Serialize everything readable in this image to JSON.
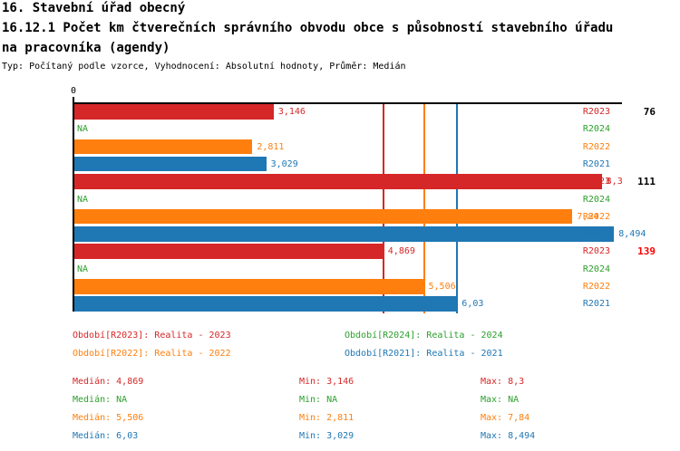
{
  "title": {
    "line1": "16. Stavební úřad obecný",
    "line2": "16.12.1 Počet km čtverečních správního obvodu obce s působností stavebního úřadu",
    "line3": "na pracovníka (agendy)",
    "subtitle": "Typ: Počítaný podle vzorce, Vyhodnocení: Absolutní hodnoty, Průměr: Medián"
  },
  "colors": {
    "r2023": "#d62728",
    "r2024": "#2ca02c",
    "r2022": "#ff7f0e",
    "r2021": "#1f77b4",
    "highlight_group": "#ff0000",
    "axis": "#000000"
  },
  "chart_data": {
    "type": "bar",
    "orientation": "horizontal",
    "xlim": [
      0,
      8.62
    ],
    "zero_tick_label": "0",
    "grid": false,
    "series_order": [
      "R2023",
      "R2024",
      "R2022",
      "R2021"
    ],
    "groups": [
      {
        "label": "76",
        "highlighted": false,
        "bars": [
          {
            "series": "R2023",
            "value": 3.146,
            "display": "3,146",
            "color": "#d62728"
          },
          {
            "series": "R2024",
            "value": null,
            "display": "NA",
            "color": "#2ca02c"
          },
          {
            "series": "R2022",
            "value": 2.811,
            "display": "2,811",
            "color": "#ff7f0e"
          },
          {
            "series": "R2021",
            "value": 3.029,
            "display": "3,029",
            "color": "#1f77b4"
          }
        ]
      },
      {
        "label": "111",
        "highlighted": false,
        "bars": [
          {
            "series": "R2023",
            "value": 8.3,
            "display": "8,3",
            "color": "#d62728"
          },
          {
            "series": "R2024",
            "value": null,
            "display": "NA",
            "color": "#2ca02c"
          },
          {
            "series": "R2022",
            "value": 7.84,
            "display": "7,84",
            "color": "#ff7f0e"
          },
          {
            "series": "R2021",
            "value": 8.494,
            "display": "8,494",
            "color": "#1f77b4"
          }
        ]
      },
      {
        "label": "139",
        "highlighted": true,
        "bars": [
          {
            "series": "R2023",
            "value": 4.869,
            "display": "4,869",
            "color": "#d62728"
          },
          {
            "series": "R2024",
            "value": null,
            "display": "NA",
            "color": "#2ca02c"
          },
          {
            "series": "R2022",
            "value": 5.506,
            "display": "5,506",
            "color": "#ff7f0e"
          },
          {
            "series": "R2021",
            "value": 6.03,
            "display": "6,03",
            "color": "#1f77b4"
          }
        ]
      }
    ],
    "median_lines": [
      {
        "series": "R2023",
        "value": 4.869,
        "color": "#d62728"
      },
      {
        "series": "R2022",
        "value": 5.506,
        "color": "#ff7f0e"
      },
      {
        "series": "R2021",
        "value": 6.03,
        "color": "#1f77b4"
      }
    ]
  },
  "legend": [
    {
      "label": "Období[R2023]: Realita - 2023",
      "color": "#d62728",
      "row": 0,
      "col": 0
    },
    {
      "label": "Období[R2024]: Realita - 2024",
      "color": "#2ca02c",
      "row": 0,
      "col": 1
    },
    {
      "label": "Období[R2022]: Realita - 2022",
      "color": "#ff7f0e",
      "row": 1,
      "col": 0
    },
    {
      "label": "Období[R2021]: Realita - 2021",
      "color": "#1f77b4",
      "row": 1,
      "col": 1
    }
  ],
  "stats": [
    {
      "color": "#d62728",
      "median": "Medián: 4,869",
      "min": "Min: 3,146",
      "max": "Max: 8,3"
    },
    {
      "color": "#2ca02c",
      "median": "Medián: NA",
      "min": "Min: NA",
      "max": "Max: NA"
    },
    {
      "color": "#ff7f0e",
      "median": "Medián: 5,506",
      "min": "Min: 2,811",
      "max": "Max: 7,84"
    },
    {
      "color": "#1f77b4",
      "median": "Medián: 6,03",
      "min": "Min: 3,029",
      "max": "Max: 8,494"
    }
  ]
}
